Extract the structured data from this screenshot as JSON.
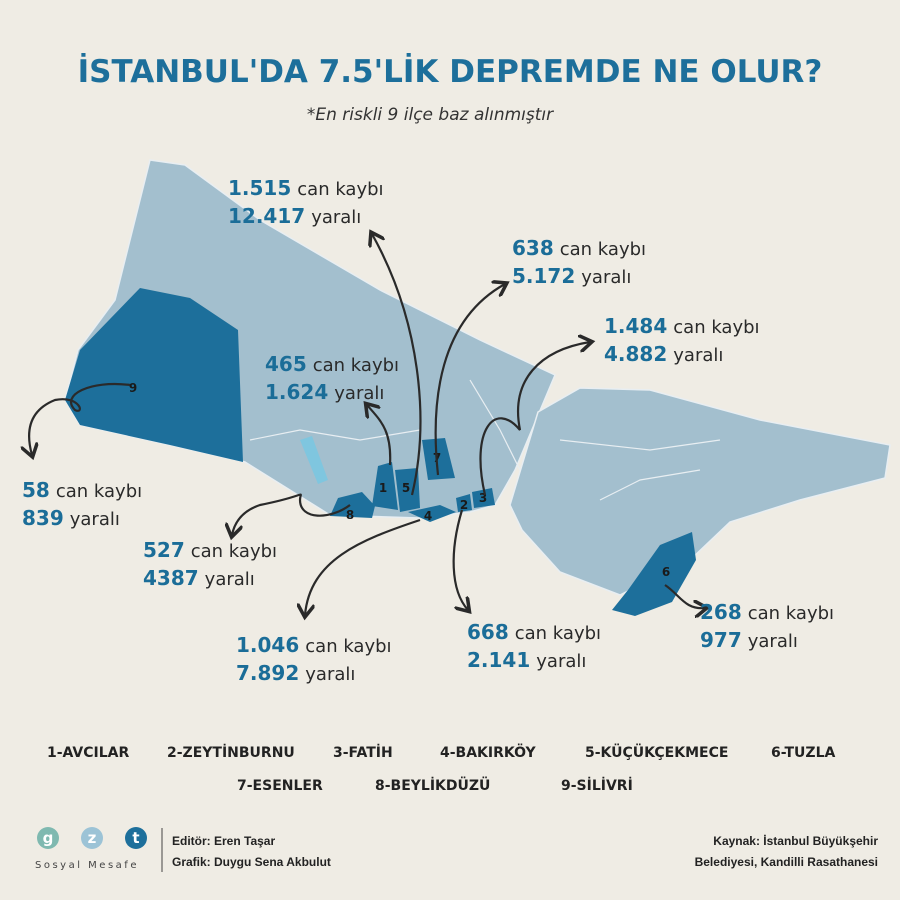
{
  "title": "İSTANBUL'DA 7.5'LİK DEPREMDE NE OLUR?",
  "subtitle": "*En riskli 9 ilçe baz alınmıştır",
  "callouts": [
    {
      "deaths": "1.515",
      "deaths_label": "can kaybı",
      "injured": "12.417",
      "injured_label": "yaralı"
    },
    {
      "deaths": "638",
      "deaths_label": "can kaybı",
      "injured": "5.172",
      "injured_label": "yaralı"
    },
    {
      "deaths": "1.484",
      "deaths_label": "can kaybı",
      "injured": "4.882",
      "injured_label": "yaralı"
    },
    {
      "deaths": "465",
      "deaths_label": "can kaybı",
      "injured": "1.624",
      "injured_label": "yaralı"
    },
    {
      "deaths": "58",
      "deaths_label": "can kaybı",
      "injured": "839",
      "injured_label": "yaralı"
    },
    {
      "deaths": "527",
      "deaths_label": "can kaybı",
      "injured": "4387",
      "injured_label": "yaralı"
    },
    {
      "deaths": "1.046",
      "deaths_label": "can kaybı",
      "injured": "7.892",
      "injured_label": "yaralı"
    },
    {
      "deaths": "668",
      "deaths_label": "can kaybı",
      "injured": "2.141",
      "injured_label": "yaralı"
    },
    {
      "deaths": "268",
      "deaths_label": "can kaybı",
      "injured": "977",
      "injured_label": "yaralı"
    }
  ],
  "map_numbers": [
    "1",
    "2",
    "3",
    "4",
    "5",
    "6",
    "7",
    "8",
    "9"
  ],
  "legend": [
    "1-AVCILAR",
    "2-ZEYTİNBURNU",
    "3-FATİH",
    "4-BAKIRKÖY",
    "5-KÜÇÜKÇEKMECE",
    "6-TUZLA",
    "7-ESENLER",
    "8-BEYLİKDÜZÜ",
    "9-SİLİVRİ"
  ],
  "footer": {
    "logo": [
      "g",
      "z",
      "t"
    ],
    "brand": "Sosyal Mesafe",
    "editor": "Editör: Eren Taşar",
    "graphic": "Grafik: Duygu Sena Akbulut",
    "source": [
      "Kaynak: İstanbul Büyükşehir",
      "Belediyesi, Kandilli Rasathanesi"
    ]
  }
}
